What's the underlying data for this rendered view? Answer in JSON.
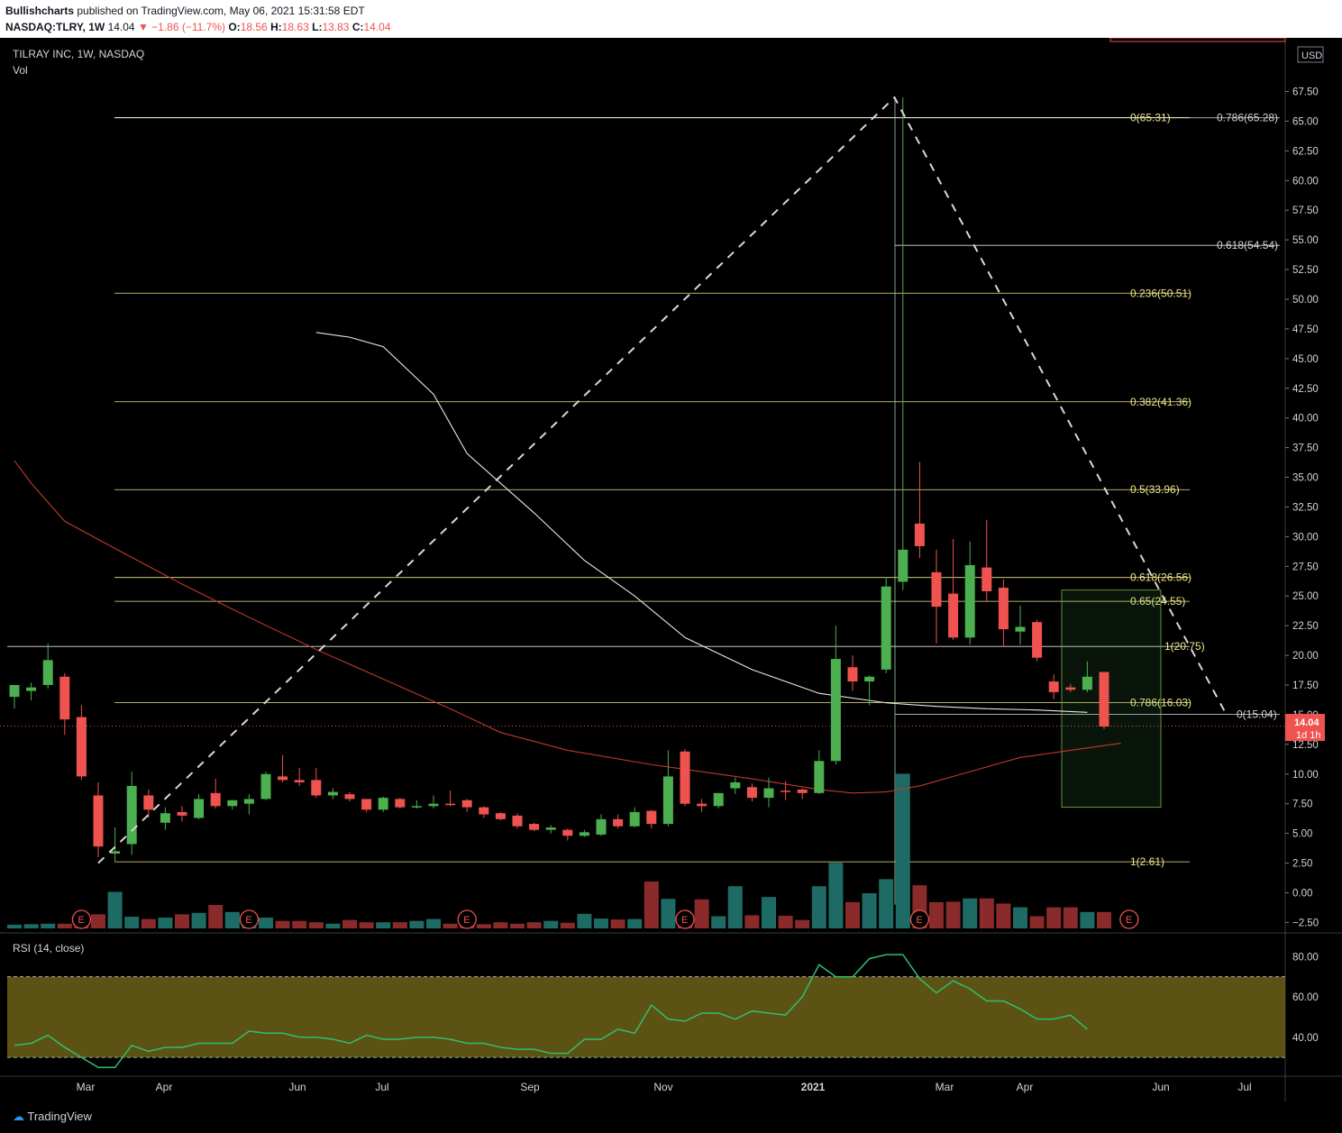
{
  "header": {
    "publisher": "Bullishcharts",
    "published_text": "published on TradingView.com, May 06, 2021 15:31:58 EDT",
    "symbol": "NASDAQ:TLRY, 1W",
    "last": "14.04",
    "change": "▼ −1.86 (−11.7%)",
    "o_label": "O:",
    "o": "18.56",
    "h_label": "H:",
    "h": "18.63",
    "l_label": "L:",
    "l": "13.83",
    "c_label": "C:",
    "c": "14.04"
  },
  "legend": {
    "title": "TILRAY INC, 1W, NASDAQ",
    "vol": "Vol",
    "currency": "USD"
  },
  "price_tag": {
    "value": "14.04",
    "countdown": "1d 1h"
  },
  "rsi_title": "RSI (14, close)",
  "footer": {
    "brand": "TradingView"
  },
  "colors": {
    "up": "#26a69a",
    "up_bright": "#4caf50",
    "down": "#ef5350",
    "fib": "#f0e68c",
    "rsi": "#2fbf71",
    "rsi_band": "#5c5214",
    "ma_white": "#e8e8e8",
    "ma_red": "#c0392b"
  },
  "chart_data": {
    "type": "candlestick",
    "price_axis": {
      "range": [
        -3.75,
        71.0
      ],
      "ticks": [
        -2.5,
        0.0,
        2.5,
        5.0,
        7.5,
        10.0,
        12.5,
        15.0,
        17.5,
        20.0,
        22.5,
        25.0,
        27.5,
        30.0,
        32.5,
        35.0,
        37.5,
        40.0,
        42.5,
        45.0,
        47.5,
        50.0,
        52.5,
        55.0,
        57.5,
        60.0,
        62.5,
        65.0,
        67.5
      ],
      "tick_labels": [
        "−2.50",
        "0.00",
        "2.50",
        "5.00",
        "7.50",
        "10.00",
        "12.50",
        "15.00",
        "17.50",
        "20.00",
        "22.50",
        "25.00",
        "27.50",
        "30.00",
        "32.50",
        "35.00",
        "37.50",
        "40.00",
        "42.50",
        "45.00",
        "47.50",
        "50.00",
        "52.50",
        "55.00",
        "57.50",
        "60.00",
        "62.50",
        "65.00",
        "67.50"
      ]
    },
    "time_axis": [
      "Mar",
      "Apr",
      "Jun",
      "Jul",
      "Sep",
      "Nov",
      "2021",
      "Mar",
      "Apr",
      "Jun",
      "Jul"
    ],
    "candles": [
      {
        "o": 16.5,
        "h": 17.5,
        "l": 15.5,
        "c": 17.5
      },
      {
        "o": 17.0,
        "h": 17.7,
        "l": 16.2,
        "c": 17.3
      },
      {
        "o": 17.5,
        "h": 21.0,
        "l": 17.2,
        "c": 19.6
      },
      {
        "o": 18.2,
        "h": 18.5,
        "l": 13.3,
        "c": 14.6
      },
      {
        "o": 14.8,
        "h": 15.8,
        "l": 9.5,
        "c": 9.8
      },
      {
        "o": 8.2,
        "h": 9.3,
        "l": 3.0,
        "c": 3.9
      },
      {
        "o": 3.3,
        "h": 5.5,
        "l": 2.6,
        "c": 3.5
      },
      {
        "o": 4.1,
        "h": 10.2,
        "l": 3.2,
        "c": 9.0
      },
      {
        "o": 8.2,
        "h": 8.7,
        "l": 6.3,
        "c": 7.0
      },
      {
        "o": 5.9,
        "h": 7.2,
        "l": 5.3,
        "c": 6.7
      },
      {
        "o": 6.8,
        "h": 7.3,
        "l": 6.0,
        "c": 6.5
      },
      {
        "o": 6.3,
        "h": 8.3,
        "l": 6.2,
        "c": 7.9
      },
      {
        "o": 8.4,
        "h": 9.6,
        "l": 7.1,
        "c": 7.3
      },
      {
        "o": 7.3,
        "h": 7.8,
        "l": 7.0,
        "c": 7.8
      },
      {
        "o": 7.5,
        "h": 8.3,
        "l": 6.6,
        "c": 7.9
      },
      {
        "o": 7.9,
        "h": 10.2,
        "l": 7.8,
        "c": 10.0
      },
      {
        "o": 9.8,
        "h": 11.6,
        "l": 9.3,
        "c": 9.5
      },
      {
        "o": 9.5,
        "h": 10.5,
        "l": 9.0,
        "c": 9.3
      },
      {
        "o": 9.5,
        "h": 10.5,
        "l": 8.0,
        "c": 8.2
      },
      {
        "o": 8.2,
        "h": 8.8,
        "l": 7.9,
        "c": 8.5
      },
      {
        "o": 8.3,
        "h": 8.5,
        "l": 7.7,
        "c": 7.9
      },
      {
        "o": 7.9,
        "h": 7.9,
        "l": 6.8,
        "c": 7.0
      },
      {
        "o": 7.0,
        "h": 8.1,
        "l": 6.8,
        "c": 8.0
      },
      {
        "o": 7.9,
        "h": 8.0,
        "l": 7.1,
        "c": 7.2
      },
      {
        "o": 7.3,
        "h": 7.8,
        "l": 7.1,
        "c": 7.3
      },
      {
        "o": 7.3,
        "h": 8.2,
        "l": 7.1,
        "c": 7.5
      },
      {
        "o": 7.5,
        "h": 8.6,
        "l": 7.3,
        "c": 7.4
      },
      {
        "o": 7.8,
        "h": 7.9,
        "l": 6.8,
        "c": 7.2
      },
      {
        "o": 7.2,
        "h": 7.3,
        "l": 6.3,
        "c": 6.6
      },
      {
        "o": 6.7,
        "h": 6.8,
        "l": 6.1,
        "c": 6.2
      },
      {
        "o": 6.5,
        "h": 6.7,
        "l": 5.4,
        "c": 5.6
      },
      {
        "o": 5.8,
        "h": 5.9,
        "l": 5.2,
        "c": 5.3
      },
      {
        "o": 5.3,
        "h": 5.7,
        "l": 5.0,
        "c": 5.5
      },
      {
        "o": 5.3,
        "h": 5.4,
        "l": 4.4,
        "c": 4.8
      },
      {
        "o": 4.8,
        "h": 5.3,
        "l": 4.7,
        "c": 5.1
      },
      {
        "o": 4.9,
        "h": 6.6,
        "l": 4.8,
        "c": 6.2
      },
      {
        "o": 6.2,
        "h": 6.6,
        "l": 5.4,
        "c": 5.6
      },
      {
        "o": 5.6,
        "h": 7.2,
        "l": 5.5,
        "c": 6.8
      },
      {
        "o": 6.9,
        "h": 7.0,
        "l": 5.4,
        "c": 5.8
      },
      {
        "o": 5.8,
        "h": 12.0,
        "l": 5.6,
        "c": 9.8
      },
      {
        "o": 11.9,
        "h": 12.1,
        "l": 7.3,
        "c": 7.5
      },
      {
        "o": 7.5,
        "h": 7.9,
        "l": 6.8,
        "c": 7.3
      },
      {
        "o": 7.3,
        "h": 8.4,
        "l": 7.1,
        "c": 8.4
      },
      {
        "o": 8.8,
        "h": 9.7,
        "l": 8.3,
        "c": 9.3
      },
      {
        "o": 8.9,
        "h": 9.2,
        "l": 7.7,
        "c": 8.0
      },
      {
        "o": 8.0,
        "h": 9.7,
        "l": 7.2,
        "c": 8.8
      },
      {
        "o": 8.6,
        "h": 9.4,
        "l": 7.8,
        "c": 8.5
      },
      {
        "o": 8.7,
        "h": 8.8,
        "l": 7.9,
        "c": 8.4
      },
      {
        "o": 8.4,
        "h": 12.0,
        "l": 8.3,
        "c": 11.1
      },
      {
        "o": 11.1,
        "h": 22.5,
        "l": 10.8,
        "c": 19.7
      },
      {
        "o": 19.0,
        "h": 20.0,
        "l": 17.0,
        "c": 17.8
      },
      {
        "o": 17.8,
        "h": 18.3,
        "l": 15.8,
        "c": 18.2
      },
      {
        "o": 18.8,
        "h": 26.6,
        "l": 18.5,
        "c": 25.8
      },
      {
        "o": 26.2,
        "h": 67.0,
        "l": 25.5,
        "c": 28.9
      },
      {
        "o": 31.1,
        "h": 36.3,
        "l": 28.2,
        "c": 29.2
      },
      {
        "o": 27.0,
        "h": 28.9,
        "l": 21.0,
        "c": 24.1
      },
      {
        "o": 25.2,
        "h": 29.8,
        "l": 21.3,
        "c": 21.5
      },
      {
        "o": 21.5,
        "h": 29.6,
        "l": 20.9,
        "c": 27.6
      },
      {
        "o": 27.4,
        "h": 31.4,
        "l": 24.6,
        "c": 25.4
      },
      {
        "o": 25.7,
        "h": 26.4,
        "l": 20.8,
        "c": 22.2
      },
      {
        "o": 22.0,
        "h": 24.2,
        "l": 20.9,
        "c": 22.4
      },
      {
        "o": 22.8,
        "h": 23.0,
        "l": 19.5,
        "c": 19.8
      },
      {
        "o": 17.8,
        "h": 18.4,
        "l": 16.3,
        "c": 16.9
      },
      {
        "o": 17.3,
        "h": 17.6,
        "l": 16.9,
        "c": 17.1
      },
      {
        "o": 17.1,
        "h": 19.5,
        "l": 16.9,
        "c": 18.2
      },
      {
        "o": 18.6,
        "h": 18.6,
        "l": 13.8,
        "c": 14.0
      }
    ],
    "volume_relative": [
      0.08,
      0.09,
      0.1,
      0.1,
      0.3,
      0.3,
      0.78,
      0.25,
      0.2,
      0.23,
      0.3,
      0.33,
      0.5,
      0.35,
      0.2,
      0.23,
      0.16,
      0.16,
      0.13,
      0.1,
      0.18,
      0.13,
      0.13,
      0.13,
      0.16,
      0.2,
      0.1,
      0.08,
      0.09,
      0.13,
      0.1,
      0.13,
      0.16,
      0.12,
      0.31,
      0.21,
      0.19,
      0.2,
      1.0,
      0.63,
      0.19,
      0.62,
      0.26,
      0.9,
      0.28,
      0.67,
      0.27,
      0.18,
      0.9,
      1.4,
      0.56,
      0.75,
      1.05,
      3.3,
      0.92,
      0.56,
      0.57,
      0.64,
      0.64,
      0.53,
      0.45,
      0.26,
      0.45,
      0.45,
      0.35,
      0.35
    ],
    "earnings_markers": [
      "E",
      "E",
      "E",
      "E",
      "E",
      "E"
    ],
    "ma_white": [
      [
        18,
        47.2
      ],
      [
        20,
        46.8
      ],
      [
        22,
        46.0
      ],
      [
        25,
        42.0
      ],
      [
        27,
        37.0
      ],
      [
        31,
        32.0
      ],
      [
        34,
        28.0
      ],
      [
        37,
        25.0
      ],
      [
        40,
        21.5
      ],
      [
        44,
        18.8
      ],
      [
        48,
        16.8
      ],
      [
        52,
        16.0
      ],
      [
        55,
        15.7
      ],
      [
        58,
        15.5
      ],
      [
        61,
        15.4
      ],
      [
        64,
        15.2
      ]
    ],
    "ma_red": [
      [
        0,
        36.4
      ],
      [
        1,
        34.5
      ],
      [
        3,
        31.3
      ],
      [
        6,
        29.0
      ],
      [
        10,
        26.0
      ],
      [
        14,
        23.2
      ],
      [
        18,
        20.5
      ],
      [
        22,
        18.0
      ],
      [
        26,
        15.5
      ],
      [
        29,
        13.5
      ],
      [
        33,
        12.0
      ],
      [
        38,
        10.8
      ],
      [
        44,
        9.6
      ],
      [
        48,
        8.7
      ],
      [
        50,
        8.4
      ],
      [
        52,
        8.5
      ],
      [
        54,
        9.0
      ],
      [
        57,
        10.2
      ],
      [
        60,
        11.4
      ],
      [
        63,
        12.0
      ],
      [
        66,
        12.6
      ]
    ],
    "fib_levels": [
      {
        "label": "0(65.31)",
        "value": 65.31
      },
      {
        "label": "0.236(50.51)",
        "value": 50.51
      },
      {
        "label": "0.382(41.36)",
        "value": 41.36
      },
      {
        "label": "0.5(33.96)",
        "value": 33.96
      },
      {
        "label": "0.618(26.56)",
        "value": 26.56
      },
      {
        "label": "0.65(24.55)",
        "value": 24.55
      },
      {
        "label": "0.786(16.03)",
        "value": 16.03
      },
      {
        "label": "1(2.61)",
        "value": 2.61
      }
    ],
    "fib_levels_2": [
      {
        "label": "0.786(65.28)",
        "value": 65.28
      },
      {
        "label": "0.618(54.54)",
        "value": 54.54
      },
      {
        "label": "1(20.75)",
        "value": 20.75
      },
      {
        "label": "0(15.04)",
        "value": 15.04
      }
    ],
    "target_zone": {
      "top": 25.5,
      "bottom": 7.2
    },
    "rsi": {
      "range": [
        22,
        90
      ],
      "upper_band": 70,
      "lower_band": 30,
      "ticks": [
        40,
        60,
        80
      ],
      "tick_labels": [
        "40.00",
        "60.00",
        "80.00"
      ],
      "values": [
        36,
        37,
        41,
        35,
        30,
        25,
        25,
        36,
        33,
        35,
        35,
        37,
        37,
        37,
        43,
        42,
        42,
        40,
        40,
        39,
        37,
        41,
        39,
        39,
        40,
        40,
        39,
        37,
        37,
        35,
        34,
        34,
        32,
        32,
        39,
        39,
        44,
        42,
        56,
        49,
        48,
        52,
        52,
        49,
        53,
        52,
        51,
        60,
        76,
        70,
        70,
        79,
        81,
        81,
        69,
        62,
        68,
        64,
        58,
        58,
        54,
        49,
        49,
        51,
        44
      ]
    }
  }
}
